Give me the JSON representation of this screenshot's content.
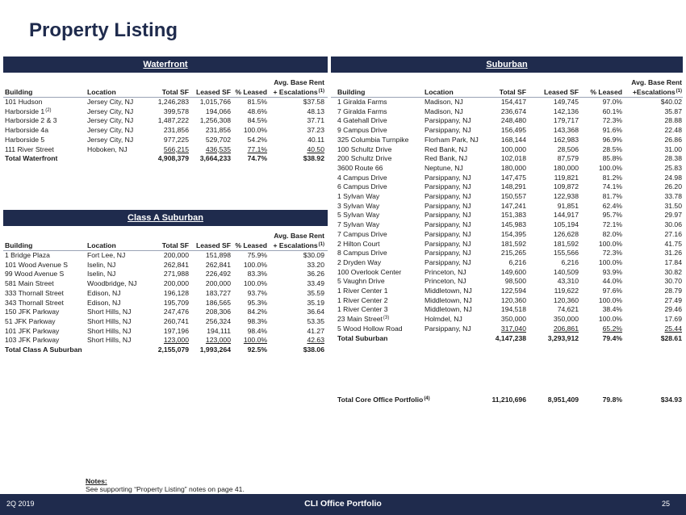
{
  "title": "Property Listing",
  "tables": [
    {
      "title": "Waterfront",
      "headers": [
        "Building",
        "Location",
        "Total SF",
        "Leased SF",
        "% Leased",
        {
          "top": "Avg. Base Rent",
          "text": "+ Escalations",
          "sup": "(1)"
        }
      ],
      "rows": [
        [
          "101 Hudson",
          "Jersey City, NJ",
          "1,246,283",
          "1,015,766",
          "81.5%",
          "$37.58"
        ],
        [
          {
            "text": "Harborside 1",
            "sup": "(2)"
          },
          "Jersey City, NJ",
          "399,578",
          "194,066",
          "48.6%",
          "48.13"
        ],
        [
          "Harborside 2 & 3",
          "Jersey City, NJ",
          "1,487,222",
          "1,256,308",
          "84.5%",
          "37.71"
        ],
        [
          "Harborside 4a",
          "Jersey City, NJ",
          "231,856",
          "231,856",
          "100.0%",
          "37.23"
        ],
        [
          "Harborside 5",
          "Jersey City, NJ",
          "977,225",
          "529,702",
          "54.2%",
          "40.11"
        ],
        [
          "111 River Street",
          "Hoboken, NJ",
          "566,215",
          "436,535",
          "77.1%",
          "40.50"
        ]
      ],
      "total": [
        "Total Waterfront",
        "4,908,379",
        "3,664,233",
        "74.7%",
        "$38.92"
      ]
    },
    {
      "title": "Class A Suburban",
      "headers": [
        "Building",
        "Location",
        "Total SF",
        "Leased SF",
        "% Leased",
        {
          "top": "Avg. Base Rent",
          "text": "+ Escalations",
          "sup": "(1)"
        }
      ],
      "rows": [
        [
          "1 Bridge Plaza",
          "Fort Lee, NJ",
          "200,000",
          "151,898",
          "75.9%",
          "$30.09"
        ],
        [
          "101 Wood Avenue S",
          "Iselin, NJ",
          "262,841",
          "262,841",
          "100.0%",
          "33.20"
        ],
        [
          "99 Wood Avenue S",
          "Iselin, NJ",
          "271,988",
          "226,492",
          "83.3%",
          "36.26"
        ],
        [
          "581 Main Street",
          "Woodbridge, NJ",
          "200,000",
          "200,000",
          "100.0%",
          "33.49"
        ],
        [
          "333 Thornall Street",
          "Edison, NJ",
          "196,128",
          "183,727",
          "93.7%",
          "35.59"
        ],
        [
          "343 Thornall Street",
          "Edison, NJ",
          "195,709",
          "186,565",
          "95.3%",
          "35.19"
        ],
        [
          "150 JFK Parkway",
          "Short Hills, NJ",
          "247,476",
          "208,306",
          "84.2%",
          "36.64"
        ],
        [
          "51 JFK Parkway",
          "Short Hills, NJ",
          "260,741",
          "256,324",
          "98.3%",
          "53.35"
        ],
        [
          "101 JFK Parkway",
          "Short Hills, NJ",
          "197,196",
          "194,111",
          "98.4%",
          "41.27"
        ],
        [
          "103 JFK Parkway",
          "Short Hills, NJ",
          "123,000",
          "123,000",
          "100.0%",
          "42.63"
        ]
      ],
      "total": [
        "Total Class A Suburban",
        "2,155,079",
        "1,993,264",
        "92.5%",
        "$38.06"
      ]
    },
    {
      "title": "Suburban",
      "headers": [
        "Building",
        "Location",
        "Total SF",
        "Leased SF",
        "% Leased",
        {
          "top": "Avg. Base Rent",
          "text": "+Escalations",
          "sup": "(1)"
        }
      ],
      "rows": [
        [
          "1 Giralda Farms",
          "Madison, NJ",
          "154,417",
          "149,745",
          "97.0%",
          "$40.02"
        ],
        [
          "7 Giralda Farms",
          "Madison, NJ",
          "236,674",
          "142,136",
          "60.1%",
          "35.87"
        ],
        [
          "4 Gatehall Drive",
          "Parsippany, NJ",
          "248,480",
          "179,717",
          "72.3%",
          "28.88"
        ],
        [
          "9 Campus Drive",
          "Parsippany, NJ",
          "156,495",
          "143,368",
          "91.6%",
          "22.48"
        ],
        [
          "325 Columbia Turnpike",
          "Florham Park, NJ",
          "168,144",
          "162,983",
          "96.9%",
          "26.86"
        ],
        [
          "100 Schultz Drive",
          "Red Bank, NJ",
          "100,000",
          "28,506",
          "28.5%",
          "31.00"
        ],
        [
          "200 Schultz Drive",
          "Red Bank, NJ",
          "102,018",
          "87,579",
          "85.8%",
          "28.38"
        ],
        [
          "3600 Route 66",
          "Neptune, NJ",
          "180,000",
          "180,000",
          "100.0%",
          "25.83"
        ],
        [
          "4 Campus Drive",
          "Parsippany, NJ",
          "147,475",
          "119,821",
          "81.2%",
          "24.98"
        ],
        [
          "6 Campus Drive",
          "Parsippany, NJ",
          "148,291",
          "109,872",
          "74.1%",
          "26.20"
        ],
        [
          "1 Sylvan Way",
          "Parsippany, NJ",
          "150,557",
          "122,938",
          "81.7%",
          "33.78"
        ],
        [
          "3 Sylvan Way",
          "Parsippany, NJ",
          "147,241",
          "91,851",
          "62.4%",
          "31.50"
        ],
        [
          "5 Sylvan Way",
          "Parsippany, NJ",
          "151,383",
          "144,917",
          "95.7%",
          "29.97"
        ],
        [
          "7 Sylvan Way",
          "Parsippany, NJ",
          "145,983",
          "105,194",
          "72.1%",
          "30.06"
        ],
        [
          "7 Campus Drive",
          "Parsippany, NJ",
          "154,395",
          "126,628",
          "82.0%",
          "27.16"
        ],
        [
          "2 Hilton Court",
          "Parsippany, NJ",
          "181,592",
          "181,592",
          "100.0%",
          "41.75"
        ],
        [
          "8 Campus Drive",
          "Parsippany, NJ",
          "215,265",
          "155,566",
          "72.3%",
          "31.26"
        ],
        [
          "2 Dryden Way",
          "Parsippany, NJ",
          "6,216",
          "6,216",
          "100.0%",
          "17.84"
        ],
        [
          "100 Overlook Center",
          "Princeton, NJ",
          "149,600",
          "140,509",
          "93.9%",
          "30.82"
        ],
        [
          "5 Vaughn Drive",
          "Princeton, NJ",
          "98,500",
          "43,310",
          "44.0%",
          "30.70"
        ],
        [
          "1 River Center 1",
          "Middletown, NJ",
          "122,594",
          "119,622",
          "97.6%",
          "28.79"
        ],
        [
          "1 River Center 2",
          "Middletown, NJ",
          "120,360",
          "120,360",
          "100.0%",
          "27.49"
        ],
        [
          "1 River Center 3",
          "Middletown, NJ",
          "194,518",
          "74,621",
          "38.4%",
          "29.46"
        ],
        [
          {
            "text": "23 Main Street",
            "sup": "(3)"
          },
          "Holmdel, NJ",
          "350,000",
          "350,000",
          "100.0%",
          "17.69"
        ],
        [
          "5 Wood Hollow Road",
          "Parsippany, NJ",
          "317,040",
          "206,861",
          "65.2%",
          "25.44"
        ]
      ],
      "total": [
        "Total Suburban",
        "4,147,238",
        "3,293,912",
        "79.4%",
        "$28.61"
      ]
    }
  ],
  "core_total": [
    {
      "text": "Total Core Office Portfolio",
      "sup": "(4)"
    },
    "11,210,696",
    "8,951,409",
    "79.8%",
    "$34.93"
  ],
  "notes": {
    "heading": "Notes:",
    "text": "See supporting “Property Listing” notes on page 41."
  },
  "footer": {
    "left": "2Q 2019",
    "center": "CLI Office Portfolio",
    "page": "25"
  }
}
